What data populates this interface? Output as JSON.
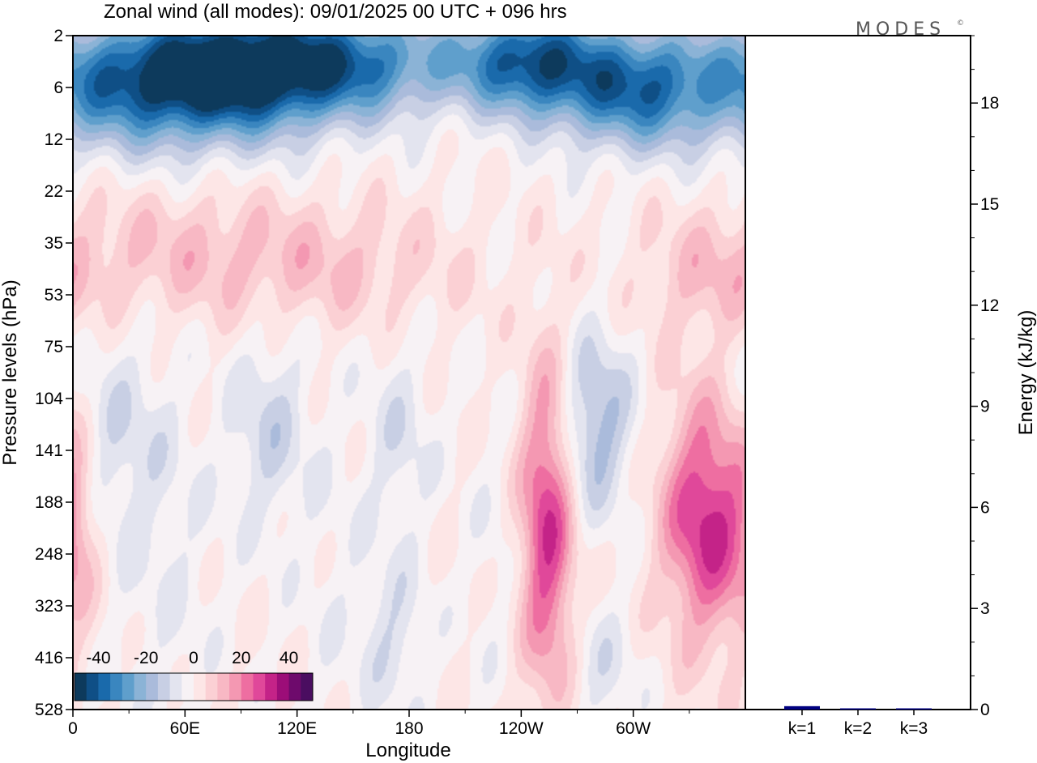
{
  "chart_data": [
    {
      "type": "heatmap",
      "title": "Zonal wind (all modes):  09/01/2025  00 UTC  + 096 hrs",
      "xlabel": "Longitude",
      "ylabel": "Pressure levels (hPa)",
      "x_ticks": [
        "0",
        "60E",
        "120E",
        "180",
        "120W",
        "60W"
      ],
      "x_tick_values": [
        0,
        60,
        120,
        180,
        240,
        300
      ],
      "xlim": [
        0,
        360
      ],
      "y_ticks": [
        "2",
        "6",
        "12",
        "22",
        "35",
        "53",
        "75",
        "104",
        "141",
        "188",
        "248",
        "323",
        "416",
        "528"
      ],
      "y_ticks_top_to_bottom": true,
      "colorbar": {
        "ticks": [
          "-40",
          "-20",
          "0",
          "20",
          "40"
        ],
        "levels": [
          -45,
          -40,
          -35,
          -30,
          -25,
          -20,
          -15,
          -10,
          -5,
          0,
          5,
          10,
          15,
          20,
          25,
          30,
          35,
          40,
          45
        ],
        "colors": [
          "#0d3a5c",
          "#0f4f86",
          "#1a6aab",
          "#3a86bf",
          "#5f9fcc",
          "#8bb3d6",
          "#aabbdb",
          "#c8cfe4",
          "#e3e4ef",
          "#f7f2f5",
          "#fde6e6",
          "#fbd0d4",
          "#f8b8c4",
          "#f498b2",
          "#ee6ea1",
          "#e0489a",
          "#c42388",
          "#9c0d78",
          "#6e0a6c",
          "#4a0d60"
        ]
      },
      "features": [
        {
          "lon": 55,
          "level_index": 1.0,
          "value": -38,
          "sx": 55,
          "sy": 0.85
        },
        {
          "lon": 120,
          "level_index": 0.5,
          "value": -40,
          "sx": 60,
          "sy": 0.7
        },
        {
          "lon": 245,
          "level_index": 0.5,
          "value": -36,
          "sx": 25,
          "sy": 0.7
        },
        {
          "lon": 300,
          "level_index": 1.0,
          "value": -34,
          "sx": 30,
          "sy": 0.8
        },
        {
          "lon": 60,
          "level_index": 4.2,
          "value": 10,
          "sx": 60,
          "sy": 0.9
        },
        {
          "lon": 150,
          "level_index": 4.5,
          "value": 7,
          "sx": 45,
          "sy": 0.8
        },
        {
          "lon": 340,
          "level_index": 4.7,
          "value": 8,
          "sx": 25,
          "sy": 0.8
        },
        {
          "lon": 20,
          "level_index": 7.8,
          "value": -9,
          "sx": 22,
          "sy": 1.5
        },
        {
          "lon": 105,
          "level_index": 7.6,
          "value": -11,
          "sx": 14,
          "sy": 1.3
        },
        {
          "lon": 175,
          "level_index": 7.8,
          "value": -8,
          "sx": 12,
          "sy": 1.3
        },
        {
          "lon": 280,
          "level_index": 7.5,
          "value": -18,
          "sx": 14,
          "sy": 1.2
        },
        {
          "lon": 172,
          "level_index": 11.6,
          "value": -9,
          "sx": 12,
          "sy": 1.0
        },
        {
          "lon": 284,
          "level_index": 12.2,
          "value": -7,
          "sx": 12,
          "sy": 0.9
        },
        {
          "lon": 254,
          "level_index": 9.5,
          "value": 30,
          "sx": 10,
          "sy": 2.2
        },
        {
          "lon": 340,
          "level_index": 9.3,
          "value": 33,
          "sx": 17,
          "sy": 1.6
        },
        {
          "lon": 2,
          "level_index": 9.3,
          "value": 7,
          "sx": 8,
          "sy": 1.6
        },
        {
          "lon": 225,
          "level_index": 10.0,
          "value": -3,
          "sx": 10,
          "sy": 1.8
        },
        {
          "lon": 50,
          "level_index": 10.5,
          "value": -4,
          "sx": 20,
          "sy": 2.5
        },
        {
          "lon": 140,
          "level_index": 10.5,
          "value": -3,
          "sx": 15,
          "sy": 2.5
        }
      ]
    },
    {
      "type": "bar",
      "ylabel": "Energy (kJ/kg)",
      "categories": [
        "k=1",
        "k=2",
        "k=3"
      ],
      "values": [
        0.1,
        0.02,
        0.02
      ],
      "ylim": [
        0,
        20
      ],
      "y_ticks": [
        "0",
        "3",
        "6",
        "9",
        "12",
        "15",
        "18"
      ],
      "y_tick_values": [
        0,
        3,
        6,
        9,
        12,
        15,
        18
      ],
      "bar_color": "#000080"
    }
  ],
  "logo": {
    "text": "MODES",
    "mark": "©"
  }
}
